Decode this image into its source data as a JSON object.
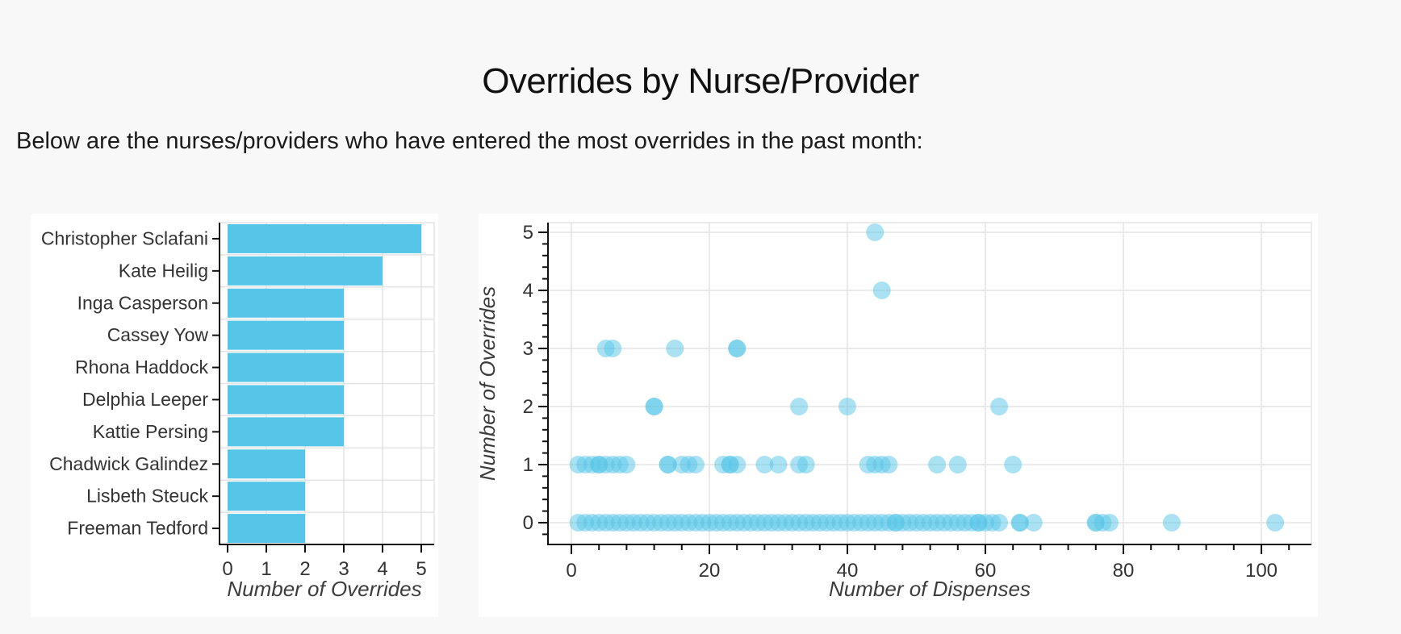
{
  "header": {
    "title": "Overrides by Nurse/Provider",
    "subtitle": "Below are the nurses/providers who have entered the most overrides in the past month:"
  },
  "theme": {
    "accent": "#55C6E8",
    "page_background": "#F8F8F8",
    "panel_background": "#FFFFFF",
    "gridline_color": "#E3E3E3",
    "axis_line_color": "#111111",
    "tick_label_color": "#333333",
    "axis_title_color": "#3C3C3C"
  },
  "chart_data": [
    {
      "type": "bar",
      "orientation": "horizontal",
      "title": "",
      "categories": [
        "Christopher Sclafani",
        "Kate Heilig",
        "Inga Casperson",
        "Cassey Yow",
        "Rhona Haddock",
        "Delphia Leeper",
        "Kattie Persing",
        "Chadwick Galindez",
        "Lisbeth Steuck",
        "Freeman Tedford"
      ],
      "values": [
        5,
        4,
        3,
        3,
        3,
        3,
        3,
        2,
        2,
        2
      ],
      "xlabel": "Number of Overrides",
      "ylabel": "",
      "xticks": [
        0,
        1,
        2,
        3,
        4,
        5
      ],
      "xlim": [
        -0.2,
        5.3
      ],
      "grid": true,
      "legend": "none",
      "bar_color": "#55C6E8"
    },
    {
      "type": "scatter",
      "title": "",
      "xlabel": "Number of Dispenses",
      "ylabel": "Number of Overrides",
      "xticks": [
        0,
        20,
        40,
        60,
        80,
        100
      ],
      "yticks": [
        0,
        1,
        2,
        3,
        4,
        5
      ],
      "minor_xtick_step": 4,
      "minor_ytick_step": 0.2,
      "xlim": [
        -3.5,
        107
      ],
      "ylim": [
        -0.37,
        5.2
      ],
      "grid": true,
      "legend": "none",
      "marker": {
        "color": "#55C6E8",
        "opacity": 0.5,
        "radius": 11
      },
      "series": [
        {
          "name": "overrides-vs-dispenses",
          "points_by_y": {
            "0": [
              1,
              2,
              3,
              4,
              5,
              6,
              7,
              8,
              9,
              10,
              11,
              12,
              13,
              14,
              15,
              16,
              17,
              18,
              19,
              20,
              21,
              22,
              23,
              24,
              25,
              26,
              27,
              28,
              29,
              30,
              31,
              32,
              33,
              34,
              35,
              36,
              37,
              38,
              39,
              40,
              41,
              42,
              43,
              44,
              45,
              46,
              47,
              47,
              48,
              49,
              50,
              51,
              52,
              53,
              54,
              55,
              56,
              57,
              58,
              59,
              59,
              60,
              61,
              62,
              65,
              65,
              67,
              76,
              76,
              77,
              78,
              87,
              102
            ],
            "1": [
              1,
              2,
              3,
              4,
              4,
              5,
              6,
              7,
              8,
              14,
              14,
              16,
              17,
              18,
              22,
              23,
              23,
              24,
              28,
              30,
              33,
              34,
              43,
              44,
              45,
              46,
              53,
              56,
              64
            ],
            "2": [
              12,
              12,
              33,
              40,
              62
            ],
            "3": [
              5,
              6,
              15,
              24,
              24
            ],
            "4": [
              45
            ],
            "5": [
              44
            ]
          }
        }
      ]
    }
  ]
}
